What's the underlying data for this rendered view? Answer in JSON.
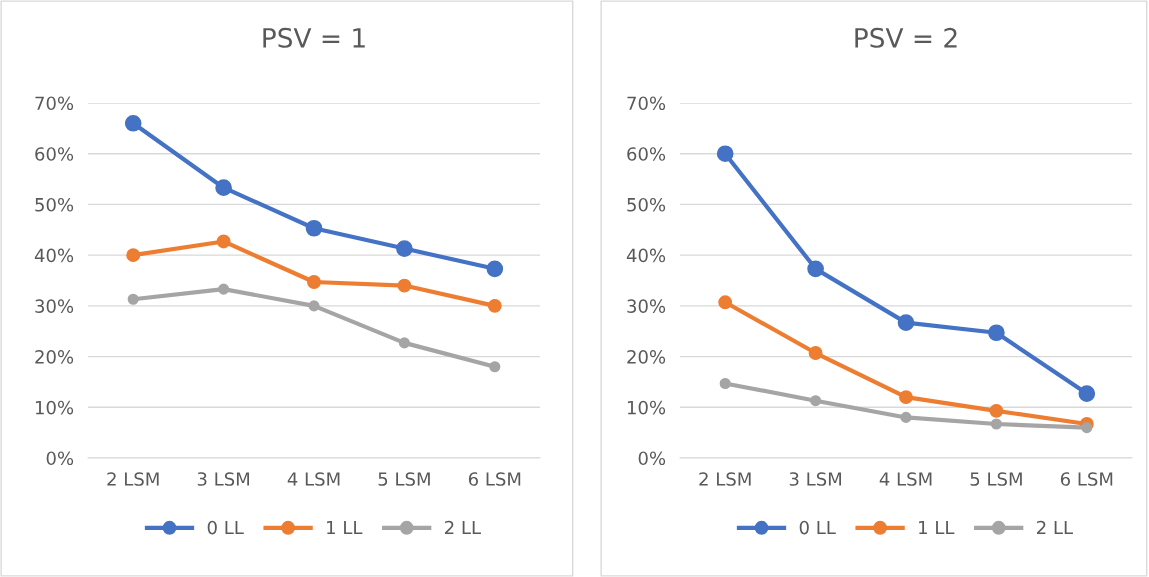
{
  "chart_data": [
    {
      "type": "line",
      "title": "PSV = 1",
      "categories": [
        "2 LSM",
        "3 LSM",
        "4 LSM",
        "5 LSM",
        "6 LSM"
      ],
      "series": [
        {
          "name": "0 LL",
          "color": "#4472c4",
          "values": [
            66,
            53.3,
            45.3,
            41.3,
            37.3
          ]
        },
        {
          "name": "1 LL",
          "color": "#ed7d31",
          "values": [
            40,
            42.7,
            34.7,
            34,
            30
          ]
        },
        {
          "name": "2 LL",
          "color": "#a5a5a5",
          "values": [
            31.3,
            33.3,
            30,
            22.7,
            18
          ]
        }
      ],
      "ylim": [
        0,
        70
      ],
      "yticks": [
        {
          "value": 0,
          "label": "0%"
        },
        {
          "value": 10,
          "label": "10%"
        },
        {
          "value": 20,
          "label": "20%"
        },
        {
          "value": 30,
          "label": "30%"
        },
        {
          "value": 40,
          "label": "40%"
        },
        {
          "value": 50,
          "label": "50%"
        },
        {
          "value": 60,
          "label": "60%"
        },
        {
          "value": 70,
          "label": "70%"
        }
      ],
      "grid": "y",
      "legend": "bottom",
      "marker": "circle",
      "line_style": "solid"
    },
    {
      "type": "line",
      "title": "PSV = 2",
      "categories": [
        "2 LSM",
        "3 LSM",
        "4 LSM",
        "5 LSM",
        "6 LSM"
      ],
      "series": [
        {
          "name": "0 LL",
          "color": "#4472c4",
          "values": [
            60,
            37.3,
            26.7,
            24.7,
            12.7
          ]
        },
        {
          "name": "1 LL",
          "color": "#ed7d31",
          "values": [
            30.7,
            20.7,
            12,
            9.3,
            6.7
          ]
        },
        {
          "name": "2 LL",
          "color": "#a5a5a5",
          "values": [
            14.7,
            11.3,
            8,
            6.7,
            6
          ]
        }
      ],
      "ylim": [
        0,
        70
      ],
      "yticks": [
        {
          "value": 0,
          "label": "0%"
        },
        {
          "value": 10,
          "label": "10%"
        },
        {
          "value": 20,
          "label": "20%"
        },
        {
          "value": 30,
          "label": "30%"
        },
        {
          "value": 40,
          "label": "40%"
        },
        {
          "value": 50,
          "label": "50%"
        },
        {
          "value": 60,
          "label": "60%"
        },
        {
          "value": 70,
          "label": "70%"
        }
      ],
      "grid": "y",
      "legend": "bottom",
      "marker": "circle",
      "line_style": "solid"
    }
  ]
}
